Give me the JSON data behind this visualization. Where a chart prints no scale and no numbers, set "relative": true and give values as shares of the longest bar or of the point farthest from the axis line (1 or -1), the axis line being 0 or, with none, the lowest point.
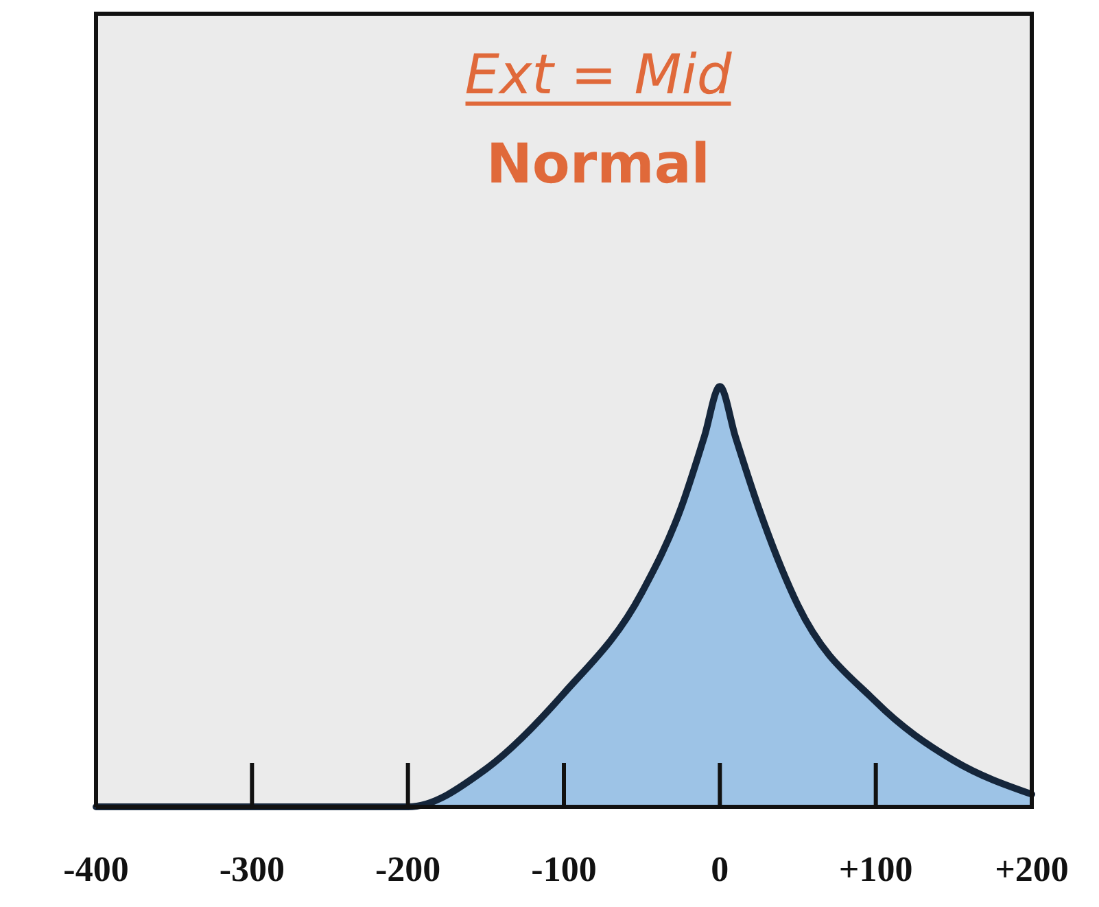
{
  "chart_data": {
    "type": "area",
    "title": "Ext = Mid",
    "subtitle": "Normal",
    "relative": true,
    "x": [
      -400,
      -300,
      -200,
      -150,
      -100,
      -50,
      -25,
      -10,
      0,
      10,
      25,
      50,
      100,
      150,
      200
    ],
    "series": [
      {
        "color": "#9dc3e6",
        "values": [
          0,
          0,
          0,
          0.09,
          0.27,
          0.51,
          0.71,
          0.88,
          1,
          0.88,
          0.71,
          0.48,
          0.25,
          0.11,
          0.03
        ]
      }
    ],
    "xlim": [
      -400,
      200
    ],
    "xticks": [
      -400,
      -300,
      -200,
      -100,
      0,
      {
        "value": 100,
        "label": "+100"
      },
      {
        "value": 200,
        "label": "+200"
      }
    ],
    "grid": false
  }
}
